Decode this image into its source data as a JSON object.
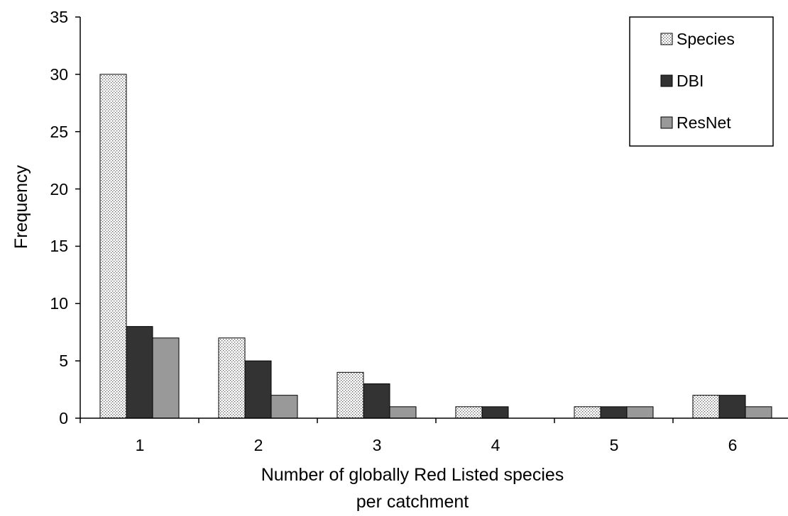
{
  "chart_data": {
    "type": "bar",
    "categories": [
      "1",
      "2",
      "3",
      "4",
      "5",
      "6"
    ],
    "series": [
      {
        "name": "Species",
        "values": [
          30,
          7,
          4,
          1,
          1,
          2
        ],
        "pattern": "dotted",
        "color": "#ffffff"
      },
      {
        "name": "DBI",
        "values": [
          8,
          5,
          3,
          1,
          1,
          2
        ],
        "color": "#333333"
      },
      {
        "name": "ResNet",
        "values": [
          7,
          2,
          1,
          0,
          1,
          1
        ],
        "color": "#999999"
      }
    ],
    "ylabel": "Frequency",
    "xlabel_lines": [
      "Number of globally Red Listed species",
      "per catchment"
    ],
    "ylim": [
      0,
      35
    ],
    "yticks": [
      "0",
      "5",
      "10",
      "15",
      "20",
      "25",
      "30",
      "35"
    ],
    "grid": false,
    "legend_position": "top-right"
  }
}
